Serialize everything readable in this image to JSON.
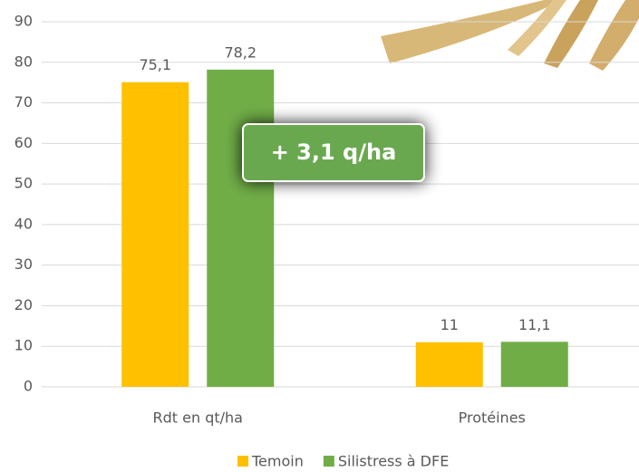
{
  "chart_data": {
    "type": "bar",
    "categories": [
      "Rdt en qt/ha",
      "Protéines"
    ],
    "series": [
      {
        "name": "Temoin",
        "color": "#FFC000",
        "values": [
          75.1,
          11
        ],
        "value_labels": [
          "75,1",
          "11"
        ]
      },
      {
        "name": "Silistress à DFE",
        "color": "#70AD47",
        "values": [
          78.2,
          11.1
        ],
        "value_labels": [
          "78,2",
          "11,1"
        ]
      }
    ],
    "ylim": [
      0,
      90
    ],
    "yticks": [
      0,
      10,
      20,
      30,
      40,
      50,
      60,
      70,
      80,
      90
    ],
    "grid": true,
    "annotation": "+ 3,1 q/ha",
    "legend": "bottom"
  }
}
